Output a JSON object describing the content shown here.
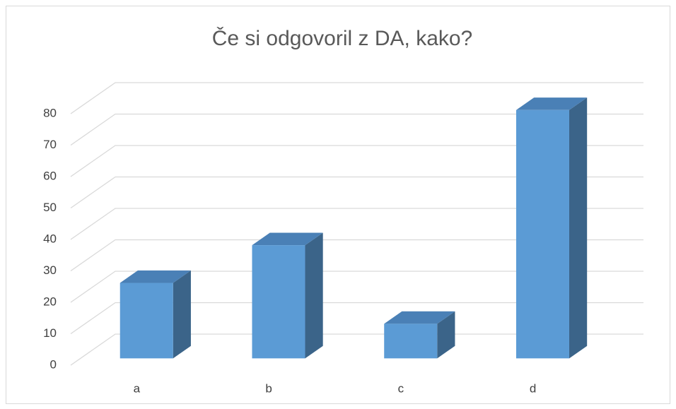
{
  "chart_data": {
    "type": "bar3d",
    "title": "Če si odgovoril z DA, kako?",
    "categories": [
      "a",
      "b",
      "c",
      "d"
    ],
    "values": [
      24,
      36,
      11,
      79
    ],
    "color": "#5b9bd5",
    "side_color": "#3b6489",
    "top_color": "#4a80b6",
    "ylim": [
      0,
      80
    ],
    "yticks": [
      0,
      10,
      20,
      30,
      40,
      50,
      60,
      70,
      80
    ],
    "grid": true
  }
}
